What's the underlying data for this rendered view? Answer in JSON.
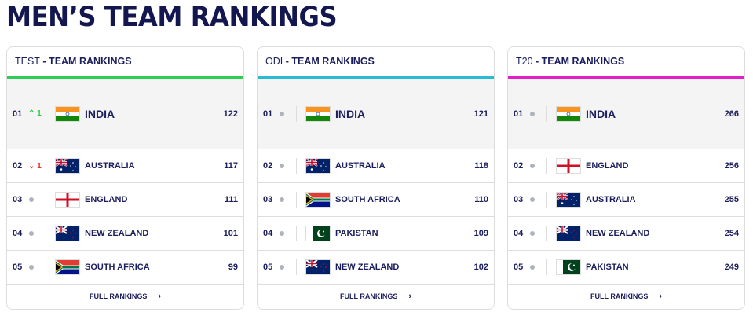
{
  "title": "MEN’S TEAM RANKINGS",
  "footer_label": "FULL RANKINGS",
  "cards": [
    {
      "format": "TEST",
      "suffix": " - TEAM RANKINGS",
      "accent": "#2ecc55",
      "rows": [
        {
          "pos": "01",
          "move": "up",
          "move_val": "1",
          "team": "INDIA",
          "flag": "india",
          "points": "122"
        },
        {
          "pos": "02",
          "move": "down",
          "move_val": "1",
          "team": "AUSTRALIA",
          "flag": "australia",
          "points": "117"
        },
        {
          "pos": "03",
          "move": "none",
          "team": "ENGLAND",
          "flag": "england",
          "points": "111"
        },
        {
          "pos": "04",
          "move": "none",
          "team": "NEW ZEALAND",
          "flag": "newzealand",
          "points": "101"
        },
        {
          "pos": "05",
          "move": "none",
          "team": "SOUTH AFRICA",
          "flag": "southafrica",
          "points": "99"
        }
      ]
    },
    {
      "format": "ODI",
      "suffix": " - TEAM RANKINGS",
      "accent": "#2bbad3",
      "rows": [
        {
          "pos": "01",
          "move": "none",
          "team": "INDIA",
          "flag": "india",
          "points": "121"
        },
        {
          "pos": "02",
          "move": "none",
          "team": "AUSTRALIA",
          "flag": "australia",
          "points": "118"
        },
        {
          "pos": "03",
          "move": "none",
          "team": "SOUTH AFRICA",
          "flag": "southafrica",
          "points": "110"
        },
        {
          "pos": "04",
          "move": "none",
          "team": "PAKISTAN",
          "flag": "pakistan",
          "points": "109"
        },
        {
          "pos": "05",
          "move": "none",
          "team": "NEW ZEALAND",
          "flag": "newzealand",
          "points": "102"
        }
      ]
    },
    {
      "format": "T20",
      "suffix": " - TEAM RANKINGS",
      "accent": "#e01fc9",
      "rows": [
        {
          "pos": "01",
          "move": "none",
          "team": "INDIA",
          "flag": "india",
          "points": "266"
        },
        {
          "pos": "02",
          "move": "none",
          "team": "ENGLAND",
          "flag": "england",
          "points": "256"
        },
        {
          "pos": "03",
          "move": "none",
          "team": "AUSTRALIA",
          "flag": "australia",
          "points": "255"
        },
        {
          "pos": "04",
          "move": "none",
          "team": "NEW ZEALAND",
          "flag": "newzealand",
          "points": "254"
        },
        {
          "pos": "05",
          "move": "none",
          "team": "PAKISTAN",
          "flag": "pakistan",
          "points": "249"
        }
      ]
    }
  ]
}
